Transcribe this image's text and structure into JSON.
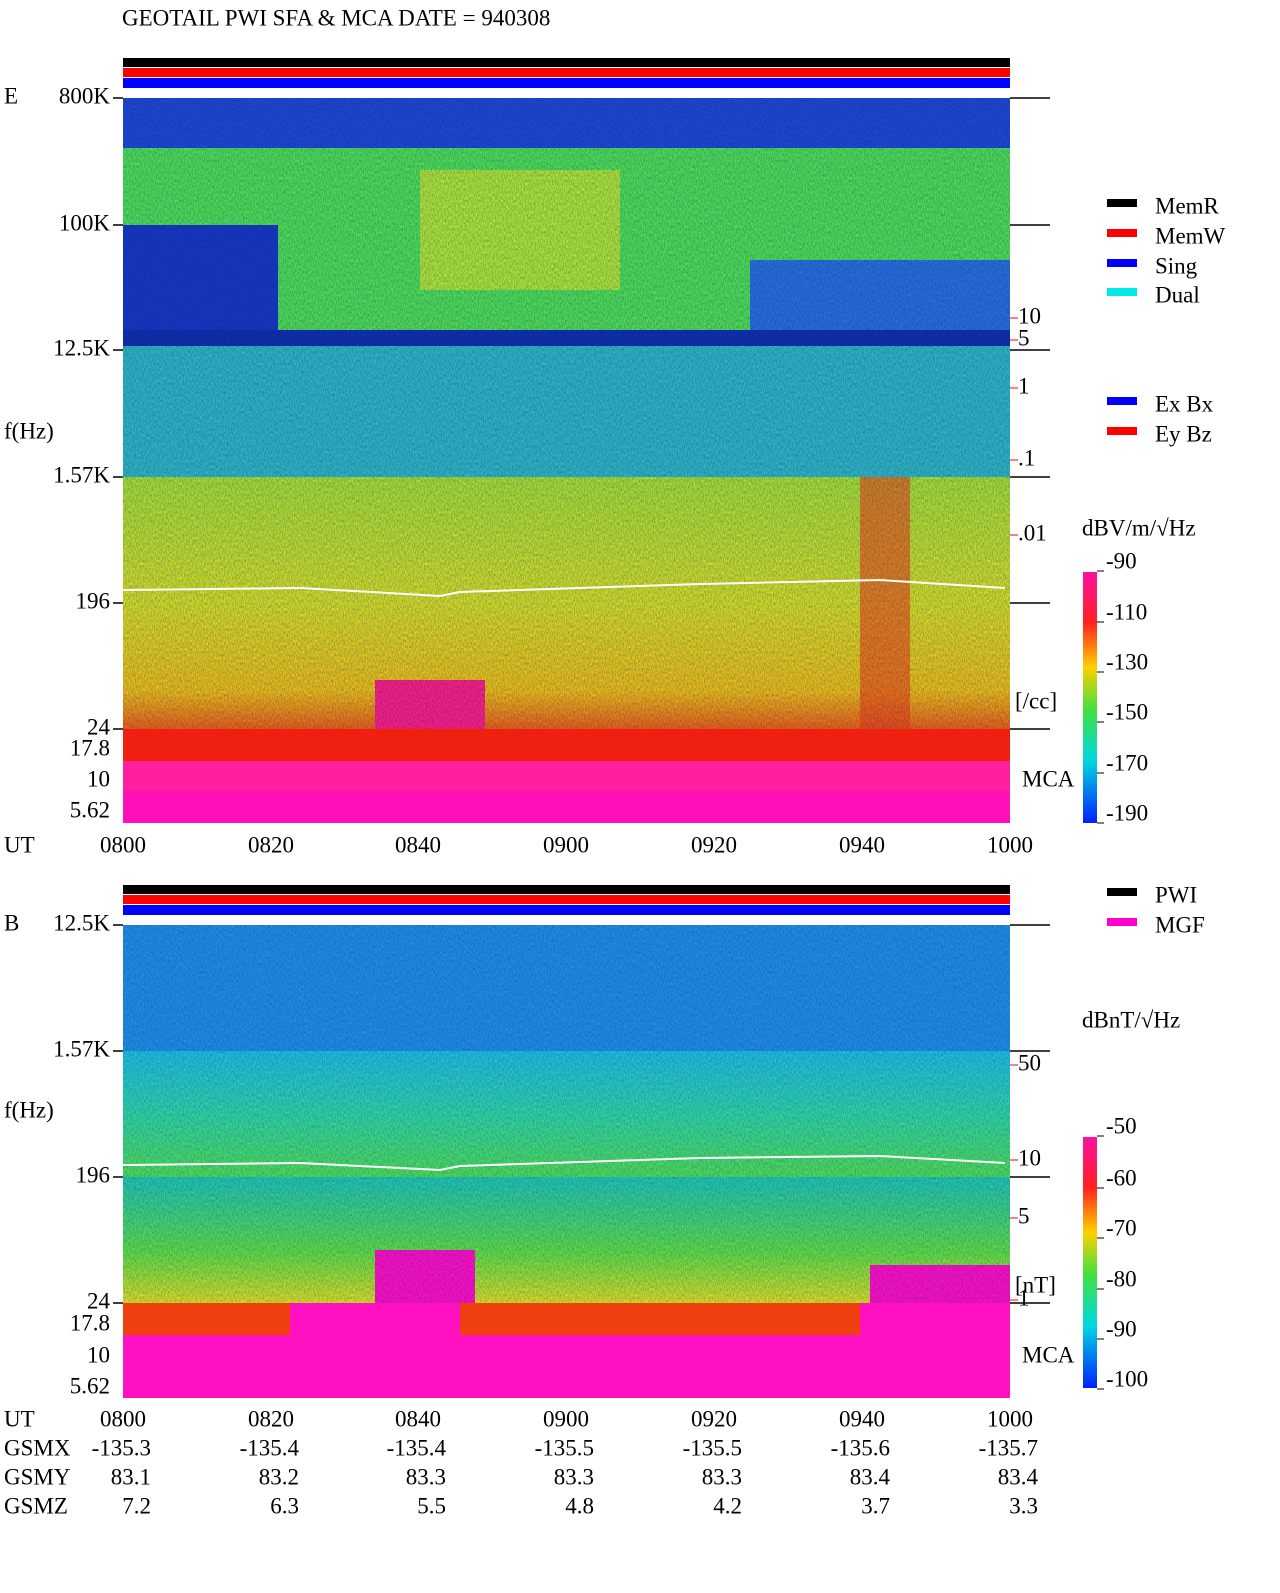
{
  "header": {
    "title": "GEOTAIL  PWI SFA & MCA   DATE = 940308"
  },
  "panels": [
    {
      "channel": "E",
      "ylabel": "f(Hz)",
      "freq_ticks": [
        "800K",
        "100K",
        "12.5K",
        "1.57K",
        "196",
        "24",
        "17.8",
        "10",
        "5.62"
      ],
      "density_ticks": [
        "10",
        "5",
        "1",
        ".1",
        ".01"
      ],
      "density_unit": "[/cc]",
      "mca_label": "MCA",
      "time_label": "UT",
      "time_ticks": [
        "0800",
        "0820",
        "0840",
        "0900",
        "0920",
        "0940",
        "1000"
      ],
      "colorbar": {
        "unit": "dBV/m/√Hz",
        "ticks": [
          "-90",
          "-110",
          "-130",
          "-150",
          "-170",
          "-190"
        ]
      },
      "legend": [
        {
          "label": "MemR",
          "color": "#000000"
        },
        {
          "label": "MemW",
          "color": "#ff0000"
        },
        {
          "label": "Sing",
          "color": "#0000ff"
        },
        {
          "label": "Dual",
          "color": "#00e8e8"
        }
      ],
      "legend2": [
        {
          "label": "Ex Bx",
          "color": "#0000ff"
        },
        {
          "label": "Ey Bz",
          "color": "#ff0000"
        }
      ]
    },
    {
      "channel": "B",
      "ylabel": "f(Hz)",
      "freq_ticks": [
        "12.5K",
        "1.57K",
        "196",
        "24",
        "17.8",
        "10",
        "5.62"
      ],
      "density_ticks": [
        "50",
        "10",
        "5",
        "1"
      ],
      "density_unit": "[nT]",
      "mca_label": "MCA",
      "time_label": "UT",
      "time_ticks": [
        "0800",
        "0820",
        "0840",
        "0900",
        "0920",
        "0940",
        "1000"
      ],
      "colorbar": {
        "unit": "dBnT/√Hz",
        "ticks": [
          "-50",
          "-60",
          "-70",
          "-80",
          "-90",
          "-100"
        ]
      },
      "legend": [
        {
          "label": "PWI",
          "color": "#000000"
        },
        {
          "label": "MGF",
          "color": "#ff00d0"
        }
      ]
    }
  ],
  "orbit": [
    {
      "label": "GSMX",
      "values": [
        "-135.3",
        "-135.4",
        "-135.4",
        "-135.5",
        "-135.5",
        "-135.6",
        "-135.7"
      ]
    },
    {
      "label": "GSMY",
      "values": [
        "83.1",
        "83.2",
        "83.3",
        "83.3",
        "83.3",
        "83.4",
        "83.4"
      ]
    },
    {
      "label": "GSMZ",
      "values": [
        "7.2",
        "6.3",
        "5.5",
        "4.8",
        "4.2",
        "3.7",
        "3.3"
      ]
    }
  ]
}
